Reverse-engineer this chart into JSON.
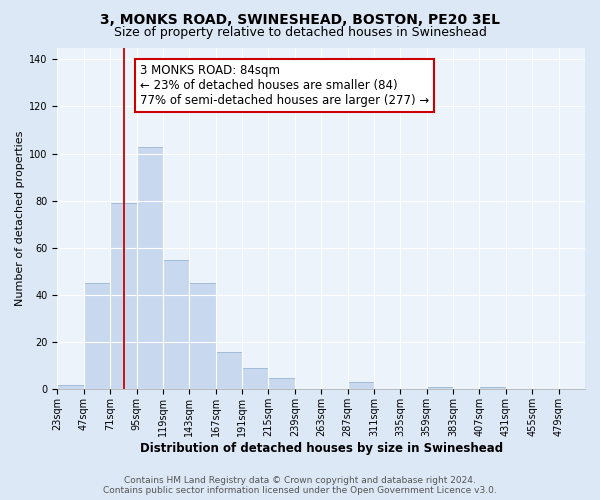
{
  "title": "3, MONKS ROAD, SWINESHEAD, BOSTON, PE20 3EL",
  "subtitle": "Size of property relative to detached houses in Swineshead",
  "xlabel": "Distribution of detached houses by size in Swineshead",
  "ylabel": "Number of detached properties",
  "bin_edges": [
    23,
    47,
    71,
    95,
    119,
    143,
    167,
    191,
    215,
    239,
    263,
    287,
    311,
    335,
    359,
    383,
    407,
    431,
    455,
    479,
    503
  ],
  "bar_heights": [
    2,
    45,
    79,
    103,
    55,
    45,
    16,
    9,
    5,
    0,
    0,
    3,
    0,
    0,
    1,
    0,
    1,
    0,
    0,
    0
  ],
  "bar_color": "#c8d8ee",
  "bar_edgecolor": "#a0bcd8",
  "ylim": [
    0,
    145
  ],
  "yticks": [
    0,
    20,
    40,
    60,
    80,
    100,
    120,
    140
  ],
  "red_line_x": 84,
  "annotation_line1": "3 MONKS ROAD: 84sqm",
  "annotation_line2": "← 23% of detached houses are smaller (84)",
  "annotation_line3": "77% of semi-detached houses are larger (277) →",
  "annotation_box_color": "#ffffff",
  "annotation_box_edgecolor": "#cc0000",
  "footer_line1": "Contains HM Land Registry data © Crown copyright and database right 2024.",
  "footer_line2": "Contains public sector information licensed under the Open Government Licence v3.0.",
  "bg_color": "#dce8f5",
  "plot_bg_color": "#edf3fa",
  "grid_color": "#ffffff",
  "title_fontsize": 10,
  "subtitle_fontsize": 9,
  "xlabel_fontsize": 8.5,
  "ylabel_fontsize": 8,
  "tick_fontsize": 7,
  "footer_fontsize": 6.5,
  "annotation_fontsize": 8.5
}
